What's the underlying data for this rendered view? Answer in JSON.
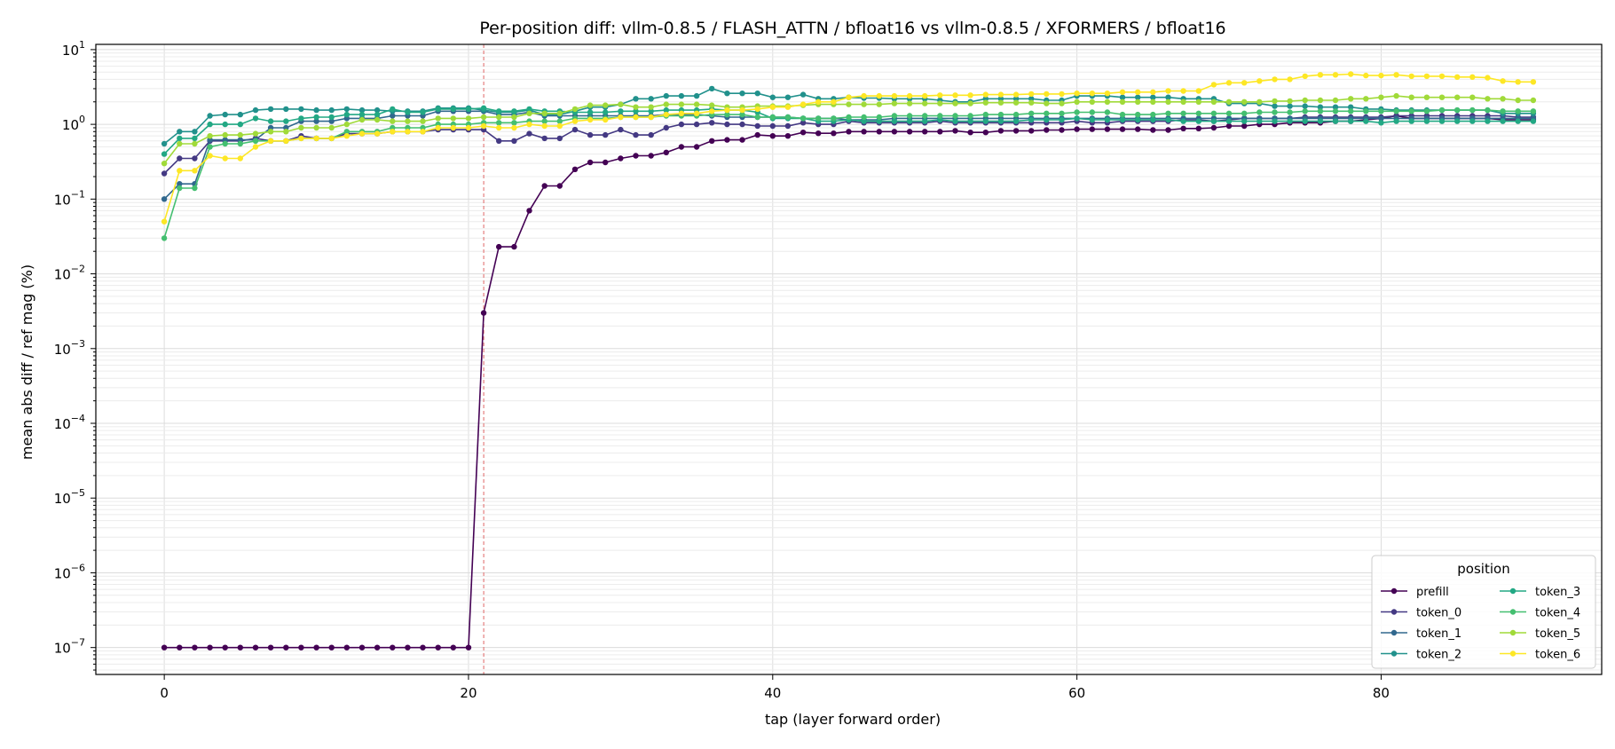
{
  "chart_data": {
    "type": "line",
    "title": "Per-position diff: vllm-0.8.5 / FLASH_ATTN / bfloat16  vs  vllm-0.8.5 / XFORMERS / bfloat16",
    "xlabel": "tap (layer forward order)",
    "ylabel": "mean abs diff / ref mag (%)",
    "xlim": [
      -4.5,
      94.5
    ],
    "ylim_log10": [
      -7.36,
      1.07
    ],
    "yscale": "log",
    "x_ticks": [
      0,
      20,
      40,
      60,
      80
    ],
    "y_tick_exponents": [
      -7,
      -6,
      -5,
      -4,
      -3,
      -2,
      -1,
      0,
      1
    ],
    "grid": true,
    "vline": {
      "x": 21,
      "color": "#e06666"
    },
    "legend": {
      "title": "position",
      "placement": "lower-right",
      "columns": 2
    },
    "x": [
      0,
      1,
      2,
      3,
      4,
      5,
      6,
      7,
      8,
      9,
      10,
      11,
      12,
      13,
      14,
      15,
      16,
      17,
      18,
      19,
      20,
      21,
      22,
      23,
      24,
      25,
      26,
      27,
      28,
      29,
      30,
      31,
      32,
      33,
      34,
      35,
      36,
      37,
      38,
      39,
      40,
      41,
      42,
      43,
      44,
      45,
      46,
      47,
      48,
      49,
      50,
      51,
      52,
      53,
      54,
      55,
      56,
      57,
      58,
      59,
      60,
      61,
      62,
      63,
      64,
      65,
      66,
      67,
      68,
      69,
      70,
      71,
      72,
      73,
      74,
      75,
      76,
      77,
      78,
      79,
      80,
      81,
      82,
      83,
      84,
      85,
      86,
      87,
      88,
      89,
      90
    ],
    "series": [
      {
        "name": "prefill",
        "color": "#440154",
        "values": [
          1e-07,
          1e-07,
          1e-07,
          1e-07,
          1e-07,
          1e-07,
          1e-07,
          1e-07,
          1e-07,
          1e-07,
          1e-07,
          1e-07,
          1e-07,
          1e-07,
          1e-07,
          1e-07,
          1e-07,
          1e-07,
          1e-07,
          1e-07,
          1e-07,
          0.003,
          0.023,
          0.023,
          0.07,
          0.15,
          0.15,
          0.25,
          0.31,
          0.31,
          0.35,
          0.38,
          0.38,
          0.42,
          0.5,
          0.5,
          0.6,
          0.62,
          0.62,
          0.72,
          0.7,
          0.7,
          0.78,
          0.76,
          0.76,
          0.8,
          0.8,
          0.8,
          0.8,
          0.8,
          0.8,
          0.8,
          0.82,
          0.78,
          0.78,
          0.82,
          0.82,
          0.82,
          0.84,
          0.84,
          0.86,
          0.86,
          0.86,
          0.86,
          0.86,
          0.84,
          0.84,
          0.88,
          0.88,
          0.9,
          0.95,
          0.95,
          1.0,
          1.0,
          1.05,
          1.05,
          1.05,
          1.1,
          1.1,
          1.15,
          1.2,
          1.3,
          1.2,
          1.2,
          1.2,
          1.2,
          1.2,
          1.2,
          1.15,
          1.15,
          1.15
        ]
      },
      {
        "name": "token_0",
        "color": "#443983",
        "values": [
          0.22,
          0.35,
          0.35,
          0.6,
          0.6,
          0.6,
          0.65,
          0.6,
          0.6,
          0.7,
          0.65,
          0.65,
          0.75,
          0.75,
          0.75,
          0.8,
          0.8,
          0.8,
          0.85,
          0.85,
          0.85,
          0.85,
          0.6,
          0.6,
          0.75,
          0.65,
          0.65,
          0.85,
          0.72,
          0.72,
          0.85,
          0.72,
          0.72,
          0.9,
          1.0,
          1.0,
          1.05,
          1.0,
          1.0,
          0.95,
          0.95,
          0.95,
          1.05,
          1.0,
          1.0,
          1.1,
          1.05,
          1.05,
          1.05,
          1.05,
          1.05,
          1.1,
          1.05,
          1.05,
          1.05,
          1.05,
          1.05,
          1.05,
          1.05,
          1.05,
          1.1,
          1.05,
          1.05,
          1.1,
          1.1,
          1.1,
          1.1,
          1.15,
          1.15,
          1.1,
          1.15,
          1.2,
          1.2,
          1.2,
          1.2,
          1.25,
          1.25,
          1.25,
          1.25,
          1.25,
          1.25,
          1.3,
          1.3,
          1.3,
          1.3,
          1.3,
          1.3,
          1.3,
          1.3,
          1.25,
          1.25
        ]
      },
      {
        "name": "token_1",
        "color": "#31688e",
        "values": [
          0.1,
          0.16,
          0.16,
          0.62,
          0.62,
          0.62,
          0.62,
          0.9,
          0.9,
          1.1,
          1.1,
          1.1,
          1.2,
          1.2,
          1.2,
          1.3,
          1.3,
          1.3,
          1.5,
          1.5,
          1.5,
          1.5,
          1.35,
          1.35,
          1.45,
          1.3,
          1.3,
          1.3,
          1.3,
          1.3,
          1.3,
          1.3,
          1.3,
          1.35,
          1.35,
          1.35,
          1.3,
          1.25,
          1.25,
          1.25,
          1.25,
          1.25,
          1.2,
          1.2,
          1.2,
          1.15,
          1.15,
          1.15,
          1.2,
          1.2,
          1.2,
          1.2,
          1.2,
          1.2,
          1.2,
          1.2,
          1.2,
          1.2,
          1.2,
          1.2,
          1.2,
          1.2,
          1.2,
          1.2,
          1.2,
          1.2,
          1.2,
          1.2,
          1.2,
          1.2,
          1.2,
          1.2,
          1.2,
          1.2,
          1.2,
          1.2,
          1.2,
          1.2,
          1.2,
          1.2,
          1.2,
          1.2,
          1.2,
          1.2,
          1.2,
          1.2,
          1.2,
          1.2,
          1.2,
          1.2,
          1.2
        ]
      },
      {
        "name": "token_2",
        "color": "#21918c",
        "values": [
          0.55,
          0.8,
          0.8,
          1.3,
          1.35,
          1.35,
          1.55,
          1.6,
          1.6,
          1.6,
          1.55,
          1.55,
          1.6,
          1.55,
          1.55,
          1.5,
          1.5,
          1.5,
          1.65,
          1.65,
          1.65,
          1.55,
          1.45,
          1.45,
          1.55,
          1.35,
          1.35,
          1.5,
          1.7,
          1.7,
          1.85,
          2.2,
          2.2,
          2.4,
          2.4,
          2.4,
          3.0,
          2.6,
          2.6,
          2.6,
          2.3,
          2.3,
          2.5,
          2.2,
          2.2,
          2.3,
          2.25,
          2.25,
          2.2,
          2.2,
          2.2,
          2.1,
          2.0,
          2.0,
          2.2,
          2.2,
          2.2,
          2.2,
          2.1,
          2.1,
          2.4,
          2.4,
          2.4,
          2.3,
          2.3,
          2.3,
          2.3,
          2.2,
          2.2,
          2.2,
          1.9,
          1.9,
          1.9,
          1.75,
          1.75,
          1.75,
          1.7,
          1.7,
          1.7,
          1.6,
          1.6,
          1.55,
          1.55,
          1.55,
          1.55,
          1.55,
          1.55,
          1.55,
          1.4,
          1.4,
          1.4
        ]
      },
      {
        "name": "token_3",
        "color": "#22a884",
        "values": [
          0.4,
          0.65,
          0.65,
          1.0,
          1.0,
          1.0,
          1.2,
          1.1,
          1.1,
          1.2,
          1.25,
          1.25,
          1.35,
          1.35,
          1.35,
          1.6,
          1.45,
          1.45,
          1.6,
          1.6,
          1.6,
          1.65,
          1.5,
          1.5,
          1.6,
          1.5,
          1.5,
          1.45,
          1.45,
          1.45,
          1.5,
          1.5,
          1.5,
          1.55,
          1.55,
          1.55,
          1.6,
          1.55,
          1.55,
          1.45,
          1.2,
          1.2,
          1.2,
          1.1,
          1.1,
          1.15,
          1.1,
          1.1,
          1.1,
          1.1,
          1.1,
          1.15,
          1.1,
          1.1,
          1.1,
          1.1,
          1.1,
          1.15,
          1.15,
          1.15,
          1.2,
          1.15,
          1.15,
          1.15,
          1.15,
          1.15,
          1.15,
          1.1,
          1.1,
          1.1,
          1.1,
          1.1,
          1.1,
          1.1,
          1.1,
          1.1,
          1.1,
          1.1,
          1.1,
          1.1,
          1.05,
          1.1,
          1.1,
          1.1,
          1.1,
          1.1,
          1.1,
          1.1,
          1.1,
          1.1,
          1.1
        ]
      },
      {
        "name": "token_4",
        "color": "#44bf70",
        "values": [
          0.03,
          0.14,
          0.14,
          0.5,
          0.55,
          0.55,
          0.6,
          0.6,
          0.6,
          0.65,
          0.65,
          0.65,
          0.8,
          0.8,
          0.8,
          0.9,
          0.9,
          0.9,
          1.0,
          1.0,
          1.0,
          1.05,
          1.05,
          1.05,
          1.1,
          1.1,
          1.1,
          1.2,
          1.2,
          1.2,
          1.25,
          1.25,
          1.25,
          1.3,
          1.3,
          1.3,
          1.35,
          1.35,
          1.35,
          1.25,
          1.25,
          1.25,
          1.2,
          1.2,
          1.2,
          1.25,
          1.25,
          1.25,
          1.3,
          1.3,
          1.3,
          1.3,
          1.3,
          1.3,
          1.35,
          1.35,
          1.35,
          1.4,
          1.4,
          1.4,
          1.45,
          1.45,
          1.45,
          1.35,
          1.35,
          1.35,
          1.4,
          1.4,
          1.4,
          1.4,
          1.4,
          1.4,
          1.45,
          1.45,
          1.45,
          1.5,
          1.5,
          1.5,
          1.5,
          1.5,
          1.5,
          1.5,
          1.5,
          1.5,
          1.55,
          1.55,
          1.55,
          1.55,
          1.5,
          1.5,
          1.5
        ]
      },
      {
        "name": "token_5",
        "color": "#a0da39",
        "values": [
          0.3,
          0.55,
          0.55,
          0.7,
          0.72,
          0.72,
          0.75,
          0.8,
          0.8,
          0.9,
          0.9,
          0.9,
          1.0,
          1.15,
          1.15,
          1.1,
          1.1,
          1.1,
          1.2,
          1.2,
          1.2,
          1.25,
          1.25,
          1.25,
          1.4,
          1.4,
          1.4,
          1.6,
          1.8,
          1.8,
          1.85,
          1.7,
          1.7,
          1.85,
          1.85,
          1.85,
          1.8,
          1.7,
          1.7,
          1.75,
          1.75,
          1.75,
          1.8,
          1.85,
          1.85,
          1.85,
          1.85,
          1.85,
          1.9,
          1.9,
          1.9,
          1.9,
          1.9,
          1.9,
          1.95,
          1.95,
          1.95,
          1.95,
          1.9,
          1.9,
          2.0,
          2.0,
          2.0,
          2.0,
          2.0,
          2.0,
          2.0,
          2.0,
          2.0,
          2.0,
          2.0,
          2.0,
          2.0,
          2.05,
          2.05,
          2.1,
          2.1,
          2.1,
          2.2,
          2.2,
          2.3,
          2.4,
          2.3,
          2.3,
          2.3,
          2.3,
          2.3,
          2.2,
          2.2,
          2.1,
          2.1
        ]
      },
      {
        "name": "token_6",
        "color": "#fde725",
        "values": [
          0.05,
          0.24,
          0.24,
          0.38,
          0.35,
          0.35,
          0.5,
          0.6,
          0.6,
          0.65,
          0.65,
          0.65,
          0.7,
          0.75,
          0.75,
          0.8,
          0.8,
          0.8,
          0.9,
          0.9,
          0.9,
          0.95,
          0.9,
          0.9,
          1.0,
          0.95,
          0.95,
          1.1,
          1.15,
          1.15,
          1.25,
          1.25,
          1.25,
          1.35,
          1.4,
          1.4,
          1.5,
          1.55,
          1.55,
          1.6,
          1.7,
          1.7,
          1.85,
          2.0,
          2.0,
          2.3,
          2.4,
          2.4,
          2.4,
          2.4,
          2.4,
          2.45,
          2.45,
          2.45,
          2.5,
          2.5,
          2.5,
          2.55,
          2.55,
          2.55,
          2.6,
          2.6,
          2.6,
          2.7,
          2.7,
          2.7,
          2.8,
          2.8,
          2.8,
          3.4,
          3.6,
          3.6,
          3.8,
          4.0,
          4.0,
          4.4,
          4.6,
          4.6,
          4.7,
          4.5,
          4.5,
          4.6,
          4.4,
          4.4,
          4.4,
          4.3,
          4.3,
          4.2,
          3.8,
          3.7,
          3.7
        ]
      }
    ]
  }
}
